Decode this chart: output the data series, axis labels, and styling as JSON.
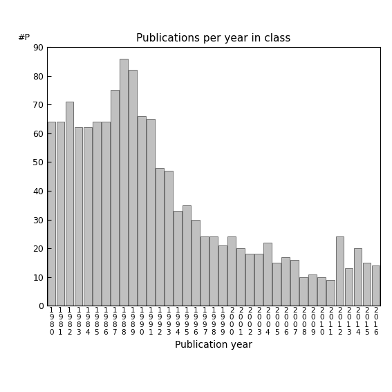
{
  "title": "Publications per year in class",
  "xlabel": "Publication year",
  "ylabel_annotation": "#P",
  "years": [
    1980,
    1981,
    1982,
    1983,
    1984,
    1985,
    1986,
    1987,
    1988,
    1989,
    1990,
    1991,
    1992,
    1993,
    1994,
    1995,
    1996,
    1997,
    1998,
    1999,
    2000,
    2001,
    2002,
    2003,
    2004,
    2005,
    2006,
    2007,
    2008,
    2009,
    2010,
    2011,
    2012,
    2013,
    2014,
    2015,
    2016
  ],
  "values": [
    64,
    64,
    71,
    62,
    62,
    64,
    64,
    75,
    86,
    82,
    66,
    65,
    48,
    47,
    33,
    35,
    30,
    24,
    24,
    21,
    24,
    20,
    18,
    18,
    22,
    15,
    17,
    16,
    10,
    11,
    10,
    9,
    24,
    13,
    20,
    15,
    14
  ],
  "bar_color": "#c0c0c0",
  "bar_edge_color": "#606060",
  "ylim": [
    0,
    90
  ],
  "yticks": [
    0,
    10,
    20,
    30,
    40,
    50,
    60,
    70,
    80,
    90
  ],
  "background_color": "#ffffff",
  "title_fontsize": 11,
  "label_fontsize": 10,
  "tick_fontsize": 9,
  "xlabel_fontsize": 10
}
